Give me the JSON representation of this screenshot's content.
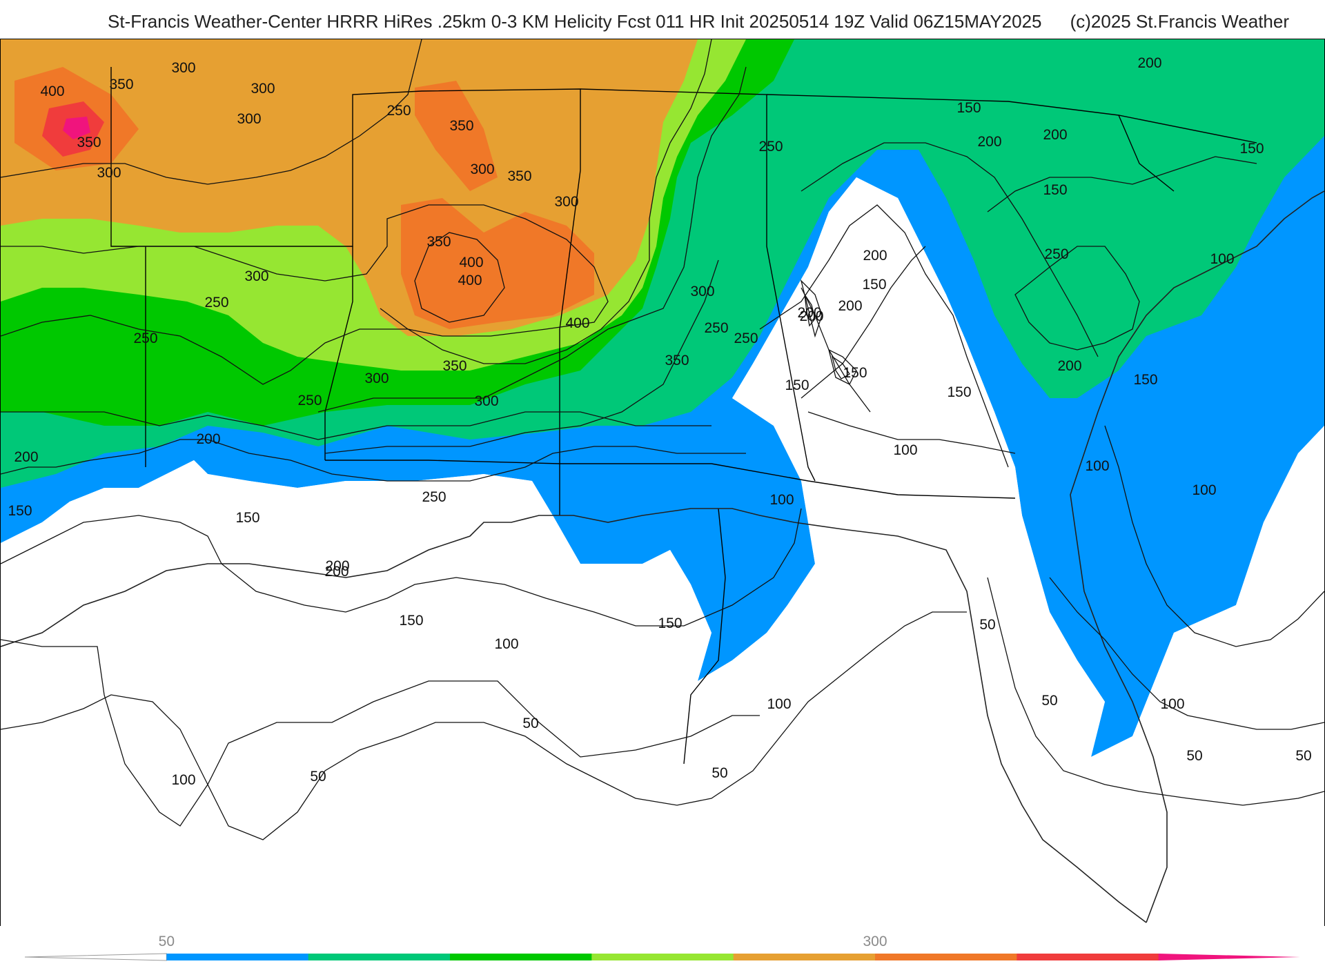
{
  "header": {
    "title": "St-Francis Weather-Center HRRR HiRes .25km 0-3 KM Helicity Fcst 011 HR Init 20250514 19Z  Valid 06Z15MAY2025",
    "copyright": "(c)2025 St.Francis Weather"
  },
  "legend": {
    "ticks": [
      {
        "label": "50",
        "value": 50
      },
      {
        "label": "300",
        "value": 300
      }
    ],
    "min": 0,
    "max": 450,
    "step": 50,
    "colors": [
      "#ffffff",
      "#0096ff",
      "#00c878",
      "#00c800",
      "#96e632",
      "#e6a032",
      "#f07828",
      "#f03c3c",
      "#f0147d"
    ]
  },
  "map": {
    "contour_labels": [
      {
        "text": "400",
        "zone": "northwest"
      },
      {
        "text": "350",
        "zone": "northwest"
      },
      {
        "text": "300",
        "zone": "northwest"
      },
      {
        "text": "350",
        "zone": "northwest"
      },
      {
        "text": "300",
        "zone": "northwest"
      },
      {
        "text": "300",
        "zone": "northwest"
      },
      {
        "text": "300",
        "zone": "northwest"
      },
      {
        "text": "250",
        "zone": "north"
      },
      {
        "text": "350",
        "zone": "north"
      },
      {
        "text": "300",
        "zone": "north"
      },
      {
        "text": "350",
        "zone": "north"
      },
      {
        "text": "350",
        "zone": "north"
      },
      {
        "text": "300",
        "zone": "north"
      },
      {
        "text": "400",
        "zone": "north"
      },
      {
        "text": "400",
        "zone": "north"
      },
      {
        "text": "300",
        "zone": "west"
      },
      {
        "text": "250",
        "zone": "west"
      },
      {
        "text": "250",
        "zone": "west"
      },
      {
        "text": "400",
        "zone": "central"
      },
      {
        "text": "350",
        "zone": "central"
      },
      {
        "text": "300",
        "zone": "central"
      },
      {
        "text": "300",
        "zone": "central"
      },
      {
        "text": "250",
        "zone": "central"
      },
      {
        "text": "300",
        "zone": "central"
      },
      {
        "text": "350",
        "zone": "central"
      },
      {
        "text": "250",
        "zone": "central"
      },
      {
        "text": "250",
        "zone": "northeast"
      },
      {
        "text": "200",
        "zone": "northeast"
      },
      {
        "text": "150",
        "zone": "northeast"
      },
      {
        "text": "200",
        "zone": "northeast"
      },
      {
        "text": "200",
        "zone": "northeast"
      },
      {
        "text": "250",
        "zone": "central"
      },
      {
        "text": "200",
        "zone": "central"
      },
      {
        "text": "150",
        "zone": "central"
      },
      {
        "text": "150",
        "zone": "central"
      },
      {
        "text": "150",
        "zone": "central"
      },
      {
        "text": "150",
        "zone": "northeast"
      },
      {
        "text": "200",
        "zone": "northeast"
      },
      {
        "text": "200",
        "zone": "northeast"
      },
      {
        "text": "150",
        "zone": "northeast"
      },
      {
        "text": "200",
        "zone": "northeast"
      },
      {
        "text": "150",
        "zone": "northeast"
      },
      {
        "text": "250",
        "zone": "east"
      },
      {
        "text": "100",
        "zone": "east"
      },
      {
        "text": "200",
        "zone": "east"
      },
      {
        "text": "150",
        "zone": "east"
      },
      {
        "text": "200",
        "zone": "southwest"
      },
      {
        "text": "200",
        "zone": "southwest"
      },
      {
        "text": "150",
        "zone": "southwest"
      },
      {
        "text": "250",
        "zone": "southwest"
      },
      {
        "text": "200",
        "zone": "south"
      },
      {
        "text": "100",
        "zone": "south"
      },
      {
        "text": "100",
        "zone": "south"
      },
      {
        "text": "100",
        "zone": "east"
      },
      {
        "text": "100",
        "zone": "east"
      },
      {
        "text": "150",
        "zone": "south"
      },
      {
        "text": "200",
        "zone": "south"
      },
      {
        "text": "150",
        "zone": "south"
      },
      {
        "text": "100",
        "zone": "south"
      },
      {
        "text": "150",
        "zone": "south"
      },
      {
        "text": "50",
        "zone": "south"
      },
      {
        "text": "100",
        "zone": "south"
      },
      {
        "text": "100",
        "zone": "southwest"
      },
      {
        "text": "50",
        "zone": "southwest"
      },
      {
        "text": "50",
        "zone": "south"
      },
      {
        "text": "50",
        "zone": "east"
      },
      {
        "text": "50",
        "zone": "east"
      },
      {
        "text": "100",
        "zone": "east"
      },
      {
        "text": "50",
        "zone": "east"
      },
      {
        "text": "50",
        "zone": "east"
      }
    ]
  }
}
